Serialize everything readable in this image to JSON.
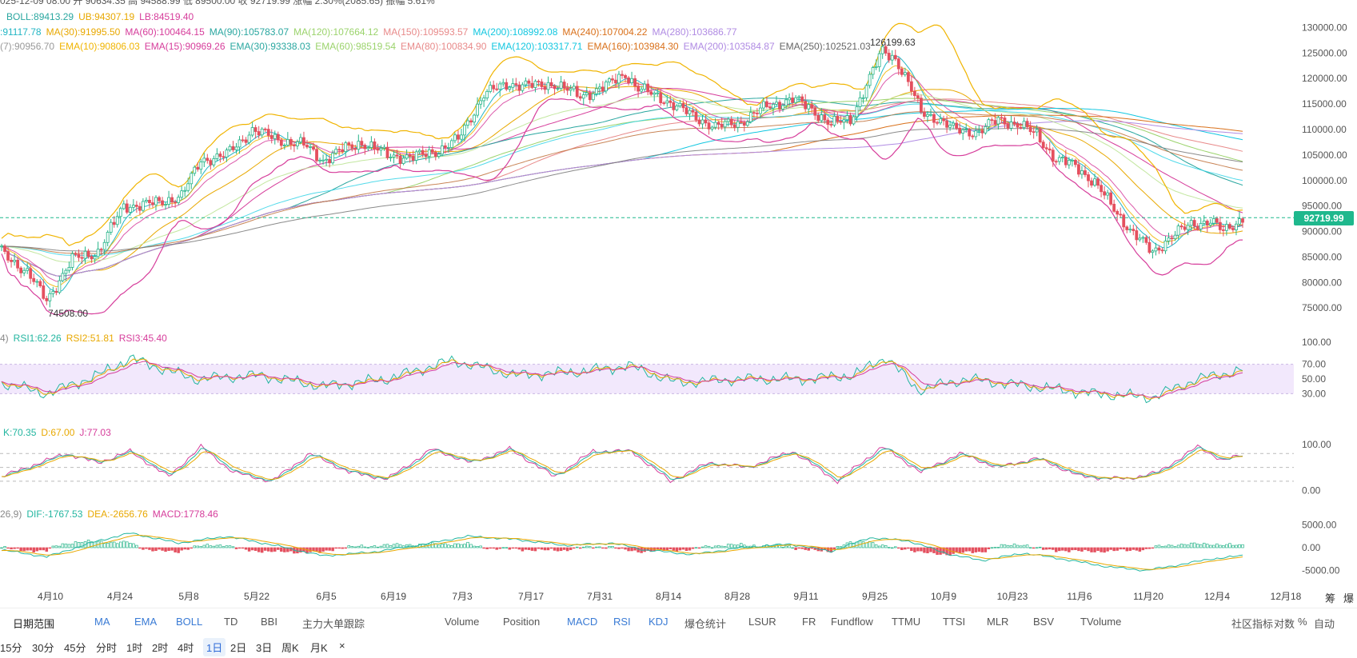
{
  "header": {
    "ohlc_line": "025-12-09 08:00  开 90634.35  高 94588.99  低 89500.00  收 92719.99  涨幅 2.30%(2085.65)  振幅 5.61%",
    "boll": [
      "BOLL:89413.29",
      "UB:94307.19",
      "LB:84519.40"
    ],
    "ma": [
      ":91117.78",
      "MA(30):91995.50",
      "MA(60):100464.15",
      "MA(90):105783.07",
      "MA(120):107664.12",
      "MA(150):109593.57",
      "MA(200):108992.08",
      "MA(240):107004.22",
      "MA(280):103686.77"
    ],
    "ema": [
      "(7):90956.70",
      "EMA(10):90806.03",
      "EMA(15):90969.26",
      "EMA(30):93338.03",
      "EMA(60):98519.54",
      "EMA(80):100834.90",
      "EMA(120):103317.71",
      "EMA(160):103984.30",
      "EMA(200):103584.87",
      "EMA(250):102521.03"
    ]
  },
  "rsi_legend": [
    "4)",
    "RSI1:62.26",
    "RSI2:51.81",
    "RSI3:45.40"
  ],
  "kdj_legend": [
    "K:70.35",
    "D:67.00",
    "J:77.03"
  ],
  "macd_legend": [
    "26,9)",
    "DIF:-1767.53",
    "DEA:-2656.76",
    "MACD:1778.46"
  ],
  "annotations": {
    "high": "126199.63",
    "low": "74508.00"
  },
  "current_price": "92719.99",
  "colors": {
    "up": "#26b489",
    "down": "#e4505f",
    "boll_band": "#f0b400",
    "rsi_zone": "#efe2fb"
  },
  "toolbar": {
    "range": "日期范围",
    "left": [
      "MA",
      "EMA",
      "BOLL",
      "TD",
      "BBI",
      "主力大单跟踪"
    ],
    "right": [
      "Volume",
      "Position",
      "MACD",
      "RSI",
      "KDJ",
      "爆仓统计",
      "LSUR",
      "FR",
      "Fundflow",
      "TTMU",
      "TTSI",
      "MLR",
      "BSV",
      "TVolume"
    ],
    "tail": [
      "社区指标",
      "对数",
      "%",
      "自动"
    ]
  },
  "timeframes": [
    "15分",
    "30分",
    "45分",
    "分时",
    "1时",
    "2时",
    "4时",
    "1日",
    "2日",
    "3日",
    "周K",
    "月K",
    "×"
  ],
  "selected_timeframe": "1日",
  "right_edge": [
    "筹",
    "爆"
  ],
  "chart_data": {
    "type": "candlestick",
    "price_axis": {
      "ticks": [
        130000,
        125000,
        120000,
        115000,
        110000,
        105000,
        100000,
        95000,
        90000,
        85000,
        80000,
        75000
      ],
      "range": [
        73000,
        131000
      ]
    },
    "rsi_axis": {
      "ticks": [
        100,
        70,
        50,
        30
      ],
      "range": [
        0,
        100
      ],
      "band": [
        30,
        70
      ]
    },
    "kdj_axis": {
      "ticks": [
        100,
        0
      ]
    },
    "macd_axis": {
      "ticks": [
        5000,
        0,
        -5000
      ],
      "range": [
        -6500,
        6500
      ]
    },
    "x_ticks": [
      "4月10",
      "4月24",
      "5月8",
      "5月22",
      "6月5",
      "6月19",
      "7月3",
      "7月17",
      "7月31",
      "8月14",
      "8月28",
      "9月11",
      "9月25",
      "10月9",
      "10月23",
      "11月6",
      "11月20",
      "12月4",
      "12月18"
    ],
    "close_keypoints": [
      [
        0,
        86000
      ],
      [
        8,
        82000
      ],
      [
        14,
        76500
      ],
      [
        22,
        84500
      ],
      [
        30,
        86000
      ],
      [
        38,
        95000
      ],
      [
        48,
        95500
      ],
      [
        56,
        97000
      ],
      [
        62,
        104000
      ],
      [
        70,
        105000
      ],
      [
        78,
        110000
      ],
      [
        86,
        108000
      ],
      [
        94,
        107000
      ],
      [
        100,
        104000
      ],
      [
        106,
        106000
      ],
      [
        112,
        107500
      ],
      [
        120,
        105000
      ],
      [
        128,
        104500
      ],
      [
        136,
        106000
      ],
      [
        142,
        108000
      ],
      [
        150,
        117000
      ],
      [
        158,
        119000
      ],
      [
        166,
        118500
      ],
      [
        172,
        119000
      ],
      [
        180,
        116500
      ],
      [
        188,
        118500
      ],
      [
        194,
        121000
      ],
      [
        198,
        118000
      ],
      [
        206,
        116000
      ],
      [
        214,
        113000
      ],
      [
        222,
        110500
      ],
      [
        230,
        111500
      ],
      [
        238,
        114500
      ],
      [
        246,
        116000
      ],
      [
        252,
        114000
      ],
      [
        258,
        111000
      ],
      [
        264,
        112000
      ],
      [
        270,
        120000
      ],
      [
        274,
        125500
      ],
      [
        278,
        124000
      ],
      [
        282,
        119000
      ],
      [
        286,
        113500
      ],
      [
        290,
        112500
      ],
      [
        296,
        110000
      ],
      [
        304,
        109500
      ],
      [
        310,
        112000
      ],
      [
        316,
        111000
      ],
      [
        322,
        109000
      ],
      [
        328,
        104000
      ],
      [
        334,
        103000
      ],
      [
        340,
        99500
      ],
      [
        346,
        94500
      ],
      [
        352,
        89500
      ],
      [
        358,
        86000
      ],
      [
        364,
        89000
      ],
      [
        370,
        91500
      ],
      [
        376,
        92000
      ],
      [
        380,
        90000
      ],
      [
        386,
        92700
      ]
    ],
    "rsi_keypoints": [
      [
        0,
        45
      ],
      [
        14,
        30
      ],
      [
        30,
        55
      ],
      [
        40,
        78
      ],
      [
        60,
        50
      ],
      [
        80,
        55
      ],
      [
        100,
        40
      ],
      [
        120,
        50
      ],
      [
        140,
        75
      ],
      [
        160,
        55
      ],
      [
        180,
        60
      ],
      [
        195,
        68
      ],
      [
        210,
        45
      ],
      [
        230,
        50
      ],
      [
        250,
        50
      ],
      [
        265,
        55
      ],
      [
        275,
        80
      ],
      [
        285,
        35
      ],
      [
        300,
        50
      ],
      [
        320,
        40
      ],
      [
        340,
        30
      ],
      [
        358,
        25
      ],
      [
        372,
        50
      ],
      [
        386,
        62
      ]
    ],
    "kdj_keypoints": [
      [
        0,
        30
      ],
      [
        10,
        55
      ],
      [
        20,
        80
      ],
      [
        30,
        60
      ],
      [
        40,
        85
      ],
      [
        52,
        30
      ],
      [
        62,
        95
      ],
      [
        72,
        40
      ],
      [
        84,
        20
      ],
      [
        96,
        80
      ],
      [
        108,
        40
      ],
      [
        120,
        25
      ],
      [
        134,
        90
      ],
      [
        146,
        60
      ],
      [
        158,
        90
      ],
      [
        172,
        30
      ],
      [
        184,
        85
      ],
      [
        196,
        85
      ],
      [
        208,
        20
      ],
      [
        220,
        60
      ],
      [
        232,
        50
      ],
      [
        246,
        85
      ],
      [
        260,
        20
      ],
      [
        274,
        95
      ],
      [
        286,
        40
      ],
      [
        298,
        80
      ],
      [
        310,
        50
      ],
      [
        322,
        70
      ],
      [
        336,
        30
      ],
      [
        350,
        25
      ],
      [
        360,
        40
      ],
      [
        372,
        95
      ],
      [
        380,
        65
      ],
      [
        386,
        77
      ]
    ],
    "macd_keypoints": [
      [
        0,
        -500
      ],
      [
        14,
        -2000
      ],
      [
        30,
        1500
      ],
      [
        40,
        3200
      ],
      [
        55,
        1000
      ],
      [
        70,
        2500
      ],
      [
        85,
        500
      ],
      [
        100,
        -1800
      ],
      [
        115,
        -1000
      ],
      [
        130,
        600
      ],
      [
        145,
        2500
      ],
      [
        160,
        1800
      ],
      [
        175,
        500
      ],
      [
        190,
        1000
      ],
      [
        200,
        -500
      ],
      [
        215,
        -1500
      ],
      [
        230,
        0
      ],
      [
        245,
        800
      ],
      [
        258,
        -800
      ],
      [
        270,
        2200
      ],
      [
        282,
        1500
      ],
      [
        295,
        -1500
      ],
      [
        305,
        -2800
      ],
      [
        318,
        -1200
      ],
      [
        330,
        -2500
      ],
      [
        344,
        -4200
      ],
      [
        356,
        -5000
      ],
      [
        366,
        -3800
      ],
      [
        376,
        -2500
      ],
      [
        386,
        -1767
      ]
    ]
  }
}
